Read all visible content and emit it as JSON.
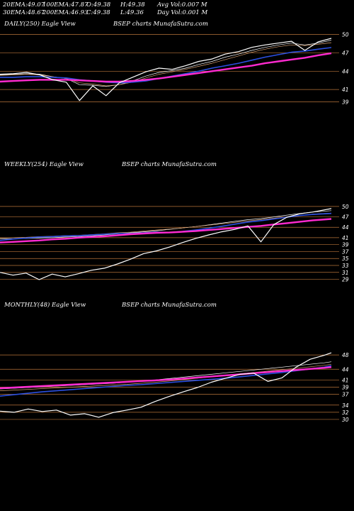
{
  "header": {
    "row1": [
      {
        "label": "20EMA:",
        "value": "49.07"
      },
      {
        "label": "100EMA:",
        "value": "47.87"
      },
      {
        "label": "O:",
        "value": "49.38"
      },
      {
        "label": "H:",
        "value": "49.38"
      },
      {
        "label": "Avg Vol:",
        "value": "0.007 M"
      }
    ],
    "row2": [
      {
        "label": "30EMA:",
        "value": "48.67"
      },
      {
        "label": "200EMA:",
        "value": "46.93"
      },
      {
        "label": "C:",
        "value": "49.38"
      },
      {
        "label": "L:",
        "value": "49.36"
      },
      {
        "label": "Day Vol:",
        "value": "0.001 M"
      }
    ]
  },
  "colors": {
    "price": "#ffffff",
    "ema_short": "#ffffff",
    "ema_mid": "#d8a070",
    "ema_blue": "#2b4fe0",
    "ema_pink": "#ff2ad0",
    "grid": "#b8743a"
  },
  "chart_data": [
    {
      "type": "line",
      "panel_label": "DAILY(250) Eagle  View",
      "watermark": "BSEP charts MunafaSutra.com",
      "ylim": [
        38,
        51
      ],
      "yticks": [
        50,
        47,
        44,
        41,
        39
      ],
      "x": [
        0,
        10,
        20,
        30,
        40,
        50,
        60,
        70,
        80,
        90,
        100,
        110,
        120,
        130,
        140,
        150,
        160,
        170,
        180,
        190,
        200,
        210,
        220,
        230,
        240,
        250
      ],
      "series": [
        {
          "role": "price",
          "values": [
            43.5,
            43.6,
            43.8,
            43.4,
            42.6,
            42.2,
            39.2,
            41.6,
            40.0,
            42.1,
            43.0,
            43.9,
            44.5,
            44.3,
            44.9,
            45.6,
            46.0,
            46.8,
            47.2,
            47.9,
            48.3,
            48.6,
            48.9,
            47.4,
            48.8,
            49.38
          ]
        },
        {
          "role": "ema20",
          "values": [
            43.4,
            43.5,
            43.6,
            43.5,
            43.1,
            42.8,
            41.8,
            41.7,
            41.5,
            41.8,
            42.4,
            43.2,
            43.8,
            44.1,
            44.5,
            45.1,
            45.6,
            46.3,
            46.8,
            47.4,
            47.9,
            48.3,
            48.6,
            48.3,
            48.6,
            49.07
          ]
        },
        {
          "role": "ema30",
          "values": [
            43.3,
            43.4,
            43.5,
            43.4,
            43.1,
            42.8,
            42.1,
            41.9,
            41.6,
            41.8,
            42.2,
            42.9,
            43.5,
            43.9,
            44.3,
            44.8,
            45.3,
            45.9,
            46.5,
            47.1,
            47.6,
            48.0,
            48.3,
            48.2,
            48.4,
            48.67
          ]
        },
        {
          "role": "ema100",
          "values": [
            43.0,
            43.0,
            43.1,
            43.1,
            43.0,
            42.9,
            42.6,
            42.4,
            42.2,
            42.1,
            42.2,
            42.4,
            42.8,
            43.2,
            43.6,
            44.0,
            44.5,
            44.9,
            45.3,
            45.8,
            46.3,
            46.7,
            47.1,
            47.3,
            47.6,
            47.87
          ]
        },
        {
          "role": "ema200",
          "values": [
            42.3,
            42.4,
            42.5,
            42.6,
            42.6,
            42.6,
            42.5,
            42.4,
            42.3,
            42.3,
            42.4,
            42.6,
            42.8,
            43.1,
            43.4,
            43.7,
            44.0,
            44.3,
            44.6,
            44.9,
            45.3,
            45.6,
            45.9,
            46.2,
            46.6,
            46.93
          ]
        }
      ]
    },
    {
      "type": "line",
      "panel_label": "WEEKLY(254) Eagle  View",
      "watermark": "BSEP charts MunafaSutra.com",
      "ylim": [
        28.5,
        51
      ],
      "yticks": [
        50,
        47,
        44,
        41,
        39,
        37,
        35,
        33,
        31,
        29
      ],
      "x": [
        0,
        10,
        20,
        30,
        40,
        50,
        60,
        70,
        80,
        90,
        100,
        110,
        120,
        130,
        140,
        150,
        160,
        170,
        180,
        190,
        200,
        210,
        220,
        230,
        240,
        254
      ],
      "series": [
        {
          "role": "price",
          "values": [
            31.0,
            30.2,
            30.8,
            28.9,
            30.5,
            29.7,
            30.6,
            31.6,
            32.2,
            33.4,
            34.8,
            36.4,
            37.2,
            38.3,
            39.6,
            40.8,
            41.8,
            42.7,
            43.4,
            44.4,
            39.8,
            44.8,
            46.9,
            47.9,
            48.4,
            49.38
          ]
        },
        {
          "role": "ema_a",
          "values": [
            40.6,
            40.7,
            40.8,
            40.9,
            41.0,
            41.2,
            41.3,
            41.5,
            41.8,
            42.1,
            42.4,
            42.7,
            43.0,
            43.4,
            43.8,
            44.2,
            44.7,
            45.2,
            45.7,
            46.2,
            46.5,
            47.0,
            47.5,
            48.0,
            48.4,
            48.8
          ]
        },
        {
          "role": "ema_b",
          "values": [
            40.9,
            41.0,
            41.1,
            41.3,
            41.4,
            41.6,
            41.7,
            41.9,
            42.1,
            42.4,
            42.6,
            42.9,
            43.2,
            43.5,
            43.8,
            44.2,
            44.6,
            45.0,
            45.4,
            45.8,
            46.2,
            46.6,
            47.0,
            47.4,
            47.8,
            48.1
          ]
        },
        {
          "role": "ema_blue",
          "values": [
            40.2,
            40.6,
            40.9,
            41.2,
            41.3,
            41.5,
            41.6,
            41.8,
            42.0,
            42.2,
            42.2,
            42.4,
            42.6,
            42.5,
            42.8,
            43.2,
            43.7,
            44.3,
            44.9,
            45.5,
            45.9,
            46.4,
            46.9,
            47.4,
            47.7,
            48.0
          ]
        },
        {
          "role": "ema_pink",
          "values": [
            39.6,
            39.8,
            40.0,
            40.2,
            40.5,
            40.7,
            41.0,
            41.2,
            41.4,
            41.7,
            42.0,
            42.2,
            42.4,
            42.5,
            42.7,
            42.9,
            43.2,
            43.5,
            43.8,
            44.1,
            44.4,
            44.8,
            45.2,
            45.6,
            46.0,
            46.4
          ]
        }
      ]
    },
    {
      "type": "line",
      "panel_label": "MONTHLY(48) Eagle  View",
      "watermark": "BSEP charts MunafaSutra.com",
      "ylim": [
        29,
        50
      ],
      "yticks": [
        48,
        44,
        41,
        39,
        37,
        34,
        32,
        30
      ],
      "x": [
        0,
        2,
        4,
        6,
        8,
        10,
        12,
        14,
        16,
        18,
        20,
        22,
        24,
        26,
        28,
        30,
        32,
        34,
        36,
        38,
        40,
        42,
        44,
        46,
        47
      ],
      "series": [
        {
          "role": "price",
          "values": [
            32.3,
            32.0,
            32.9,
            32.2,
            32.6,
            31.2,
            31.6,
            30.6,
            31.9,
            32.6,
            33.4,
            35.0,
            36.4,
            37.7,
            38.9,
            40.4,
            41.5,
            42.6,
            42.9,
            40.6,
            41.6,
            44.6,
            46.8,
            47.9,
            48.6
          ]
        },
        {
          "role": "ema_a",
          "values": [
            38.5,
            38.7,
            38.9,
            39.1,
            39.3,
            39.5,
            39.7,
            39.9,
            40.1,
            40.4,
            40.7,
            41.0,
            41.4,
            41.8,
            42.2,
            42.6,
            43.0,
            43.4,
            43.8,
            44.2,
            44.6,
            45.0,
            45.4,
            45.8,
            46.1
          ]
        },
        {
          "role": "ema_b",
          "values": [
            38.0,
            38.2,
            38.4,
            38.6,
            38.8,
            39.0,
            39.2,
            39.4,
            39.6,
            39.8,
            40.1,
            40.4,
            40.7,
            41.1,
            41.5,
            41.9,
            42.3,
            42.7,
            43.1,
            43.5,
            43.9,
            44.3,
            44.7,
            45.1,
            45.4
          ]
        },
        {
          "role": "ema_blue",
          "values": [
            36.5,
            36.9,
            37.3,
            37.7,
            38.0,
            38.3,
            38.6,
            38.9,
            39.2,
            39.5,
            39.7,
            40.0,
            40.3,
            40.6,
            40.9,
            41.2,
            41.5,
            41.9,
            42.3,
            42.7,
            43.1,
            43.6,
            44.1,
            44.6,
            45.0
          ]
        },
        {
          "role": "ema_pink",
          "values": [
            38.7,
            38.9,
            39.1,
            39.3,
            39.5,
            39.7,
            39.9,
            40.1,
            40.3,
            40.5,
            40.7,
            40.9,
            41.1,
            41.4,
            41.7,
            42.0,
            42.3,
            42.6,
            42.9,
            43.2,
            43.5,
            43.8,
            44.1,
            44.4,
            44.6
          ]
        }
      ]
    }
  ]
}
